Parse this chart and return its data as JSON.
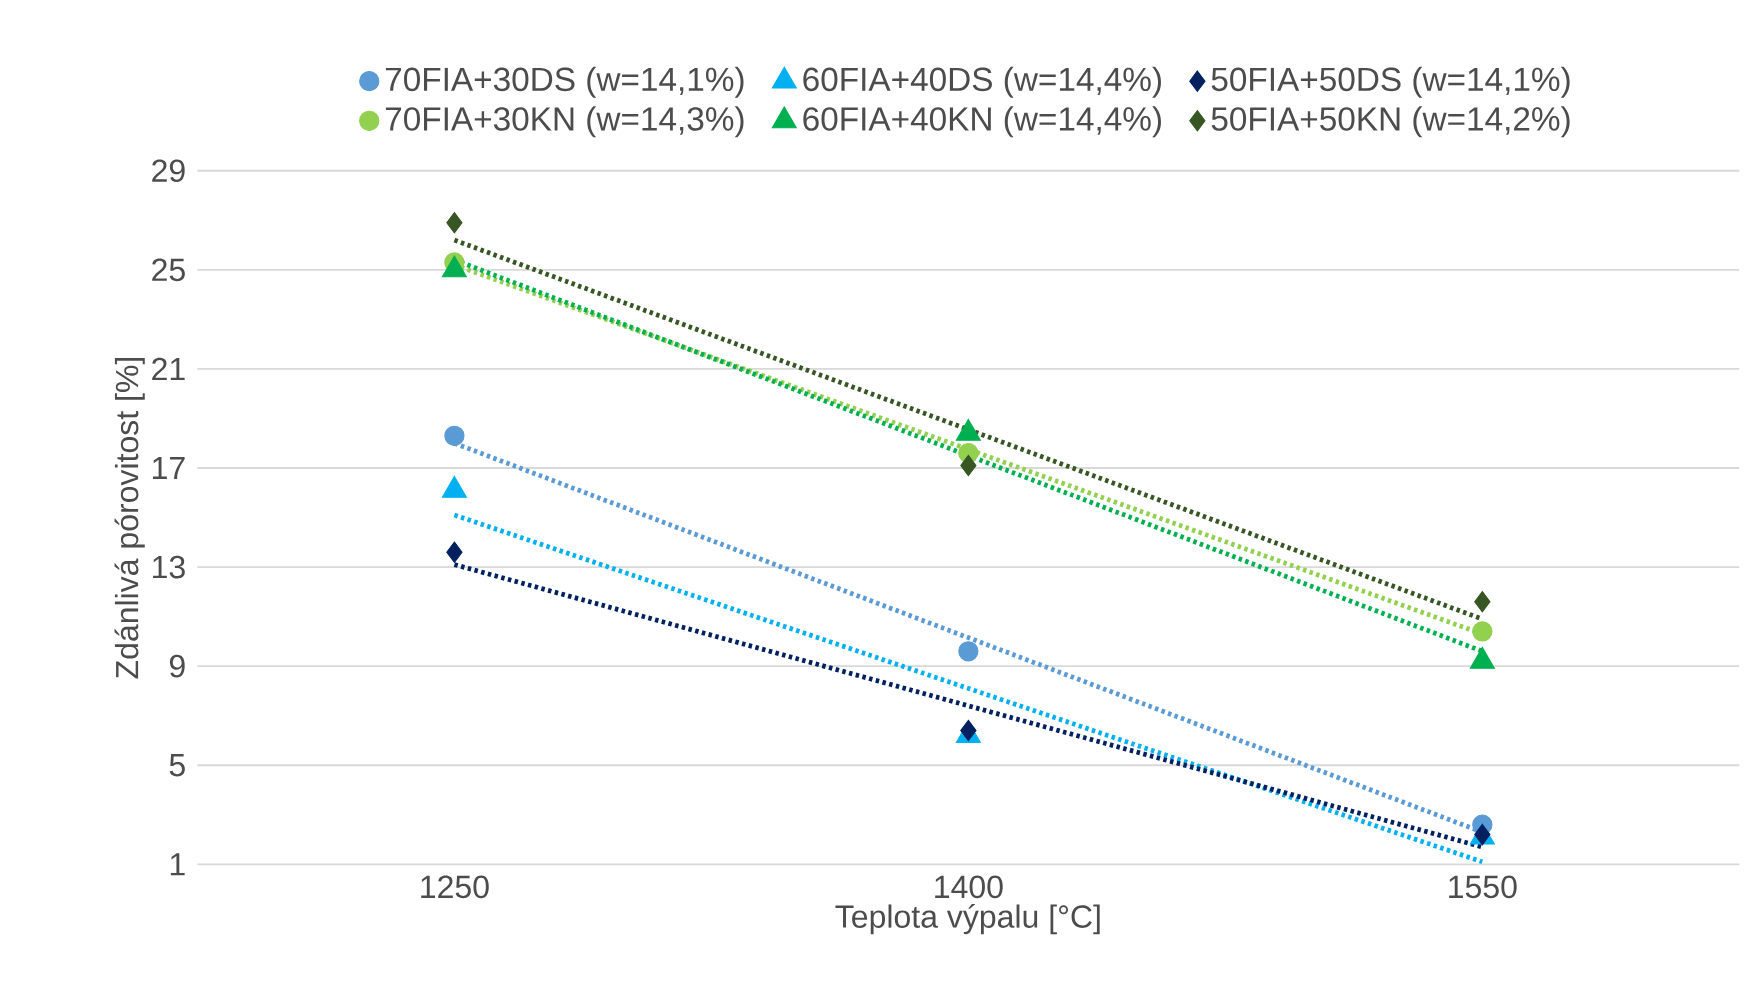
{
  "chart_data": {
    "type": "scatter",
    "xlabel": "Teplota výpalu [°C]",
    "ylabel": "Zdánlivá pórovitost [%]",
    "xlim": [
      1175,
      1625
    ],
    "xticks": [
      1250,
      1400,
      1550
    ],
    "ylim": [
      1,
      29
    ],
    "yticks": [
      1,
      5,
      9,
      13,
      17,
      21,
      25,
      29
    ],
    "grid": "y",
    "legend": "top",
    "series": [
      {
        "name": "70FIA+30DS (w=14,1%)",
        "color": "#5b9bd5",
        "marker": "circle",
        "x": [
          1250,
          1400,
          1550
        ],
        "values": [
          18.3,
          9.6,
          2.6
        ]
      },
      {
        "name": "60FIA+40DS (w=14,4%)",
        "color": "#00b0f0",
        "marker": "triangle",
        "x": [
          1250,
          1400,
          1550
        ],
        "values": [
          16.1,
          6.2,
          2.1
        ]
      },
      {
        "name": "50FIA+50DS (w=14,1%)",
        "color": "#002060",
        "marker": "diamond",
        "x": [
          1250,
          1400,
          1550
        ],
        "values": [
          13.6,
          6.4,
          2.2
        ]
      },
      {
        "name": "70FIA+30KN (w=14,3%)",
        "color": "#92d050",
        "marker": "circle",
        "x": [
          1250,
          1400,
          1550
        ],
        "values": [
          25.3,
          17.6,
          10.4
        ]
      },
      {
        "name": "60FIA+40KN (w=14,4%)",
        "color": "#00b050",
        "marker": "triangle",
        "x": [
          1250,
          1400,
          1550
        ],
        "values": [
          25.0,
          18.4,
          9.2
        ]
      },
      {
        "name": "50FIA+50KN (w=14,2%)",
        "color": "#375623",
        "marker": "diamond",
        "x": [
          1250,
          1400,
          1550
        ],
        "values": [
          26.9,
          17.1,
          11.6
        ]
      },
      {
        "type": "line",
        "line_style": "dotted",
        "color": "#5b9bd5",
        "marker": "none",
        "x": [
          1250,
          1550
        ],
        "values": [
          18.0,
          2.3
        ]
      },
      {
        "type": "line",
        "line_style": "dotted",
        "color": "#00b0f0",
        "marker": "none",
        "x": [
          1250,
          1550
        ],
        "values": [
          15.1,
          1.1
        ]
      },
      {
        "type": "line",
        "line_style": "dotted",
        "color": "#002060",
        "marker": "none",
        "x": [
          1250,
          1550
        ],
        "values": [
          13.1,
          1.7
        ]
      },
      {
        "type": "line",
        "line_style": "dotted",
        "color": "#92d050",
        "marker": "none",
        "x": [
          1250,
          1550
        ],
        "values": [
          25.2,
          10.3
        ]
      },
      {
        "type": "line",
        "line_style": "dotted",
        "color": "#00b050",
        "marker": "none",
        "x": [
          1250,
          1550
        ],
        "values": [
          25.4,
          9.6
        ]
      },
      {
        "type": "line",
        "line_style": "dotted",
        "color": "#375623",
        "marker": "none",
        "x": [
          1250,
          1550
        ],
        "values": [
          26.2,
          10.9
        ]
      }
    ]
  }
}
